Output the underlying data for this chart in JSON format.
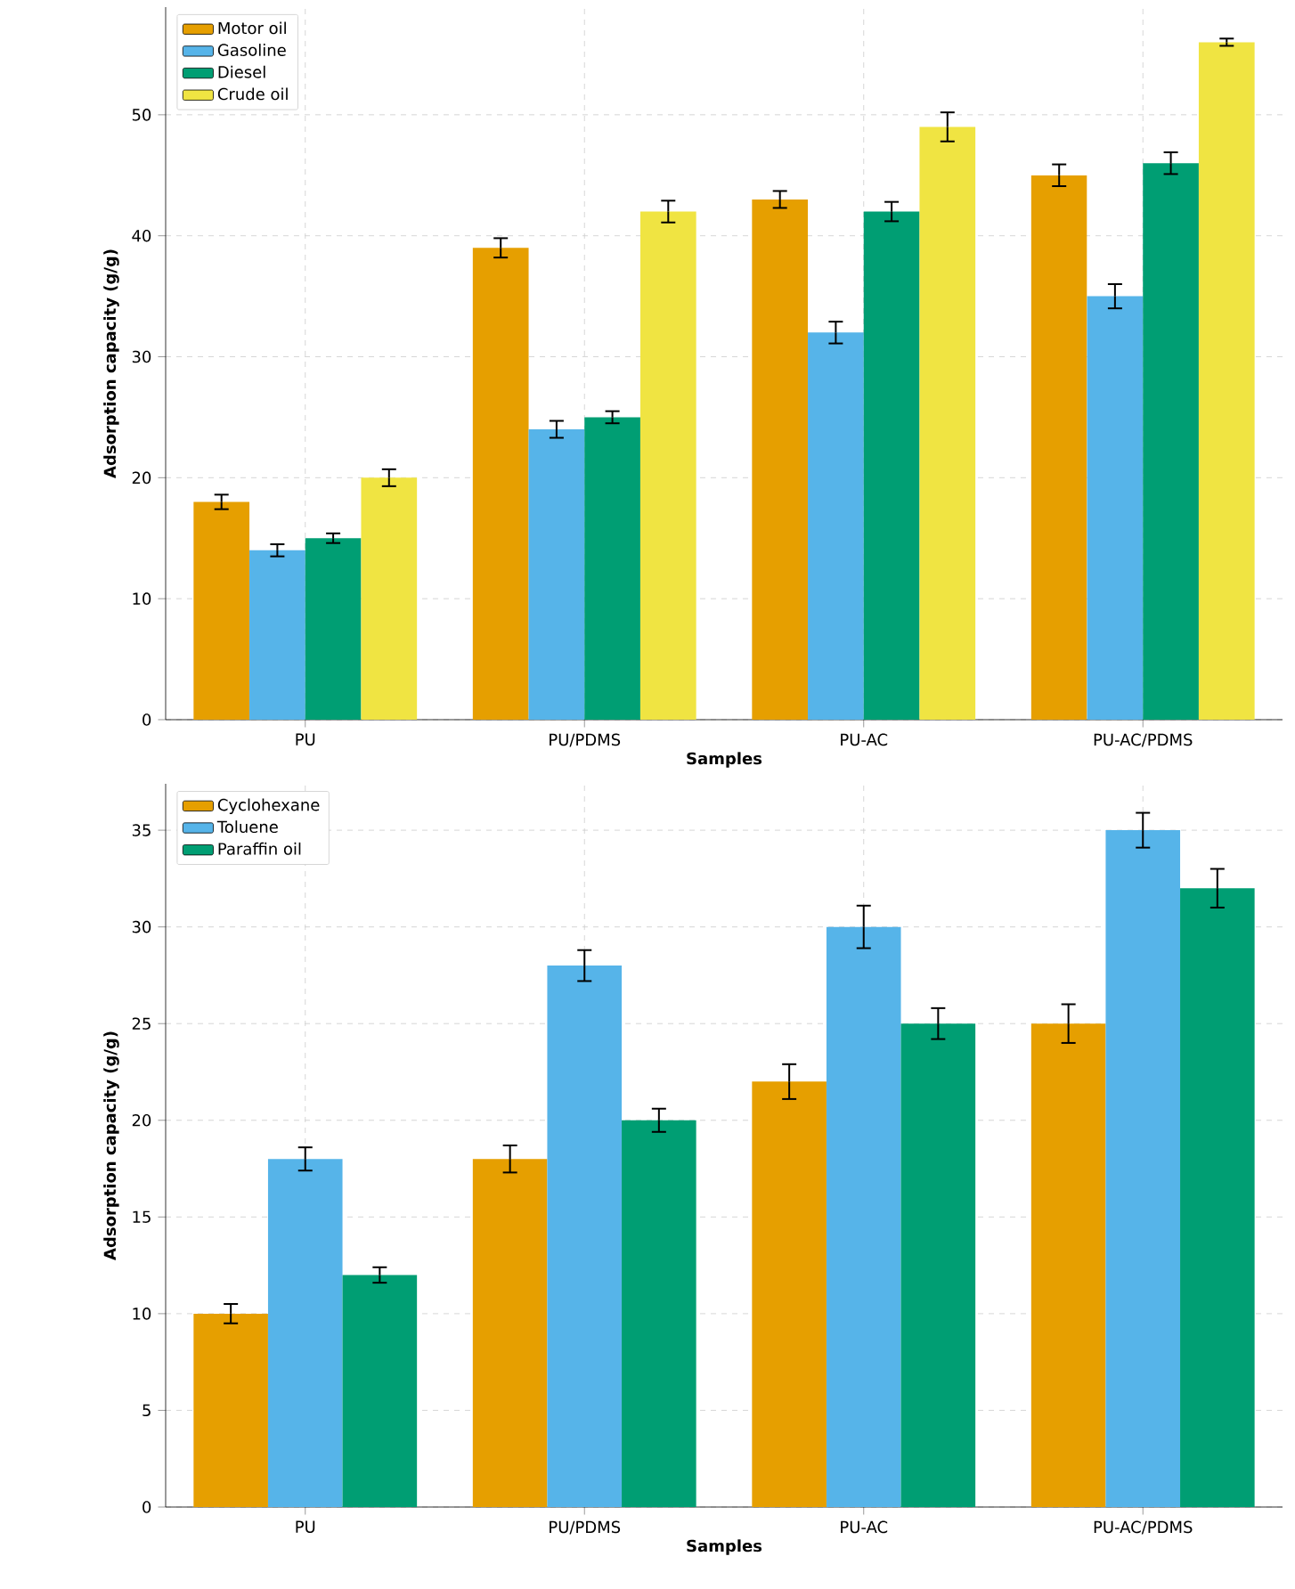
{
  "chart_data": [
    {
      "type": "bar",
      "xlabel": "Samples",
      "ylabel": "Adsorption capacity (g/g)",
      "categories": [
        "PU",
        "PU/PDMS",
        "PU-AC",
        "PU-AC/PDMS"
      ],
      "ylim": [
        0,
        58.9
      ],
      "yticks": [
        0,
        10,
        20,
        30,
        40,
        50
      ],
      "grid": true,
      "legend": "top left",
      "series": [
        {
          "name": "Motor oil",
          "color": "#e69f00",
          "values": [
            18,
            39,
            43,
            45
          ],
          "errors": [
            0.6,
            0.8,
            0.7,
            0.9
          ]
        },
        {
          "name": "Gasoline",
          "color": "#56b4e9",
          "values": [
            14,
            24,
            32,
            35
          ],
          "errors": [
            0.5,
            0.7,
            0.9,
            1.0
          ]
        },
        {
          "name": "Diesel",
          "color": "#009e73",
          "values": [
            15,
            25,
            42,
            46
          ],
          "errors": [
            0.4,
            0.5,
            0.8,
            0.9
          ]
        },
        {
          "name": "Crude oil",
          "color": "#f0e442",
          "values": [
            20,
            42,
            49,
            56
          ],
          "errors": [
            0.7,
            0.9,
            1.2,
            0.3
          ]
        }
      ]
    },
    {
      "type": "bar",
      "xlabel": "Samples",
      "ylabel": "Adsorption capacity (g/g)",
      "categories": [
        "PU",
        "PU/PDMS",
        "PU-AC",
        "PU-AC/PDMS"
      ],
      "ylim": [
        0,
        37.4
      ],
      "yticks": [
        0,
        5,
        10,
        15,
        20,
        25,
        30,
        35
      ],
      "grid": true,
      "legend": "top left",
      "series": [
        {
          "name": "Cyclohexane",
          "color": "#e69f00",
          "values": [
            10,
            18,
            22,
            25
          ],
          "errors": [
            0.5,
            0.7,
            0.9,
            1.0
          ]
        },
        {
          "name": "Toluene",
          "color": "#56b4e9",
          "values": [
            18,
            28,
            30,
            35
          ],
          "errors": [
            0.6,
            0.8,
            1.1,
            0.9
          ]
        },
        {
          "name": "Paraffin oil",
          "color": "#009e73",
          "values": [
            12,
            20,
            25,
            32
          ],
          "errors": [
            0.4,
            0.6,
            0.8,
            1.0
          ]
        }
      ]
    }
  ]
}
